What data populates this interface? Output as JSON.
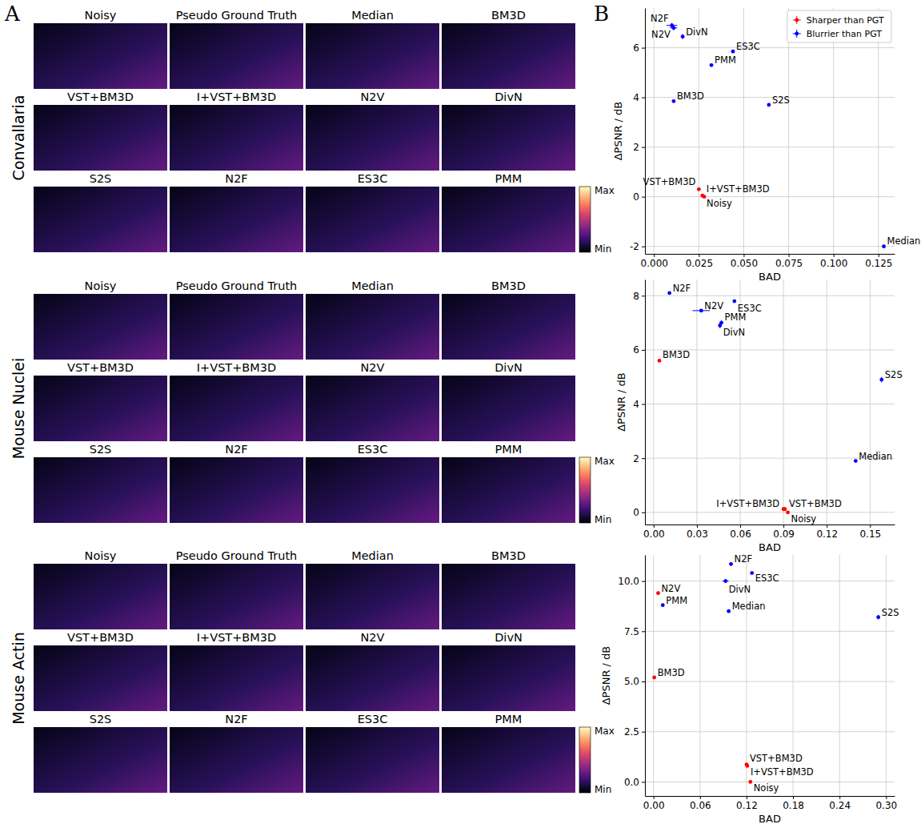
{
  "panel_labels": [
    "A",
    "B"
  ],
  "image_panel": {
    "groups": [
      {
        "name": "Convallaria",
        "titles": [
          [
            "Noisy",
            "Pseudo Ground Truth",
            "Median",
            "BM3D"
          ],
          [
            "VST+BM3D",
            "I+VST+BM3D",
            "N2V",
            "DivN"
          ],
          [
            "S2S",
            "N2F",
            "ES3C",
            "PMM"
          ]
        ]
      },
      {
        "name": "Mouse Nuclei",
        "titles": [
          [
            "Noisy",
            "Pseudo Ground Truth",
            "Median",
            "BM3D"
          ],
          [
            "VST+BM3D",
            "I+VST+BM3D",
            "N2V",
            "DivN"
          ],
          [
            "S2S",
            "N2F",
            "ES3C",
            "PMM"
          ]
        ]
      },
      {
        "name": "Mouse Actin",
        "titles": [
          [
            "Noisy",
            "Pseudo Ground Truth",
            "Median",
            "BM3D"
          ],
          [
            "VST+BM3D",
            "I+VST+BM3D",
            "N2V",
            "DivN"
          ],
          [
            "S2S",
            "N2F",
            "ES3C",
            "PMM"
          ]
        ]
      }
    ],
    "colorbar": {
      "max_label": "Max",
      "min_label": "Min"
    }
  },
  "chart_data": [
    {
      "type": "scatter",
      "x_label": "BAD",
      "y_label": "ΔPSNR / dB",
      "grid": true,
      "legend": "upper right",
      "xlim": [
        -0.005,
        0.134
      ],
      "ylim": [
        -2.3,
        7.6
      ],
      "xticks": [
        {
          "value": 0,
          "label": "0.000"
        },
        {
          "value": 0.025,
          "label": "0.025"
        },
        {
          "value": 0.05,
          "label": "0.050"
        },
        {
          "value": 0.075,
          "label": "0.075"
        },
        {
          "value": 0.1,
          "label": "0.100"
        },
        {
          "value": 0.125,
          "label": "0.125"
        }
      ],
      "yticks": [
        -2,
        0,
        2,
        4,
        6
      ],
      "series": [
        {
          "name": "Sharper than PGT",
          "color": "red",
          "labels": [
            "VST+BM3D",
            "I+VST+BM3D",
            "Noisy"
          ],
          "x": [
            0.025,
            0.027,
            0.028
          ],
          "values": [
            0.3,
            0.05,
            0.0
          ],
          "x_error": [
            0.0005,
            0.0005,
            0.0005
          ],
          "y_error": [
            0.05,
            0.05,
            0.05
          ]
        },
        {
          "name": "Blurrier than PGT",
          "color": "blue",
          "labels": [
            "N2F",
            "N2V",
            "DivN",
            "ES3C",
            "PMM",
            "BM3D",
            "S2S",
            "Median"
          ],
          "x": [
            0.01,
            0.011,
            0.016,
            0.044,
            0.032,
            0.011,
            0.064,
            0.128
          ],
          "values": [
            6.9,
            6.8,
            6.45,
            5.85,
            5.3,
            3.85,
            3.7,
            -2.0
          ],
          "x_error": [
            0.003,
            0.002,
            0.001,
            0.0005,
            0.0005,
            0.0005,
            0.0005,
            0.0005
          ],
          "y_error": [
            0.1,
            0.1,
            0.1,
            0.05,
            0.05,
            0.05,
            0.05,
            0.05
          ]
        }
      ]
    },
    {
      "type": "scatter",
      "x_label": "BAD",
      "y_label": "ΔPSNR / dB",
      "grid": true,
      "xlim": [
        -0.006,
        0.167
      ],
      "ylim": [
        -0.45,
        8.6
      ],
      "xticks": [
        {
          "value": 0,
          "label": "0.00"
        },
        {
          "value": 0.03,
          "label": "0.03"
        },
        {
          "value": 0.06,
          "label": "0.06"
        },
        {
          "value": 0.09,
          "label": "0.09"
        },
        {
          "value": 0.12,
          "label": "0.12"
        },
        {
          "value": 0.15,
          "label": "0.15"
        }
      ],
      "yticks": [
        0,
        2,
        4,
        6,
        8
      ],
      "series": [
        {
          "color": "red",
          "labels": [
            "BM3D",
            "I+VST+BM3D",
            "VST+BM3D",
            "Noisy"
          ],
          "x": [
            0.004,
            0.09,
            0.091,
            0.093
          ],
          "values": [
            5.6,
            0.12,
            0.12,
            0.0
          ],
          "x_error": [
            0.0005,
            0.0005,
            0.0005,
            0.0005
          ],
          "y_error": [
            0.05,
            0.05,
            0.05,
            0.05
          ]
        },
        {
          "color": "blue",
          "labels": [
            "N2F",
            "N2V",
            "ES3C",
            "PMM",
            "DivN",
            "S2S",
            "Median"
          ],
          "x": [
            0.011,
            0.033,
            0.056,
            0.047,
            0.046,
            0.158,
            0.14
          ],
          "values": [
            8.1,
            7.45,
            7.8,
            7.0,
            6.9,
            4.9,
            1.9
          ],
          "x_error": [
            0.001,
            0.006,
            0.0005,
            0.001,
            0.001,
            0.001,
            0.0005
          ],
          "y_error": [
            0.05,
            0.05,
            0.05,
            0.1,
            0.1,
            0.1,
            0.05
          ]
        }
      ]
    },
    {
      "type": "scatter",
      "x_label": "BAD",
      "y_label": "ΔPSNR / dB",
      "grid": true,
      "xlim": [
        -0.011,
        0.311
      ],
      "ylim": [
        -0.7,
        11.3
      ],
      "xticks": [
        {
          "value": 0,
          "label": "0.00"
        },
        {
          "value": 0.06,
          "label": "0.06"
        },
        {
          "value": 0.12,
          "label": "0.12"
        },
        {
          "value": 0.18,
          "label": "0.18"
        },
        {
          "value": 0.24,
          "label": "0.24"
        },
        {
          "value": 0.3,
          "label": "0.30"
        }
      ],
      "yticks": [
        {
          "value": 0,
          "label": "0.0"
        },
        2.5,
        {
          "value": 5,
          "label": "5.0"
        },
        7.5,
        {
          "value": 10,
          "label": "10.0"
        }
      ],
      "series": [
        {
          "color": "red",
          "labels": [
            "N2V",
            "BM3D",
            "VST+BM3D",
            "I+VST+BM3D",
            "Noisy"
          ],
          "x": [
            0.006,
            0.001,
            0.12,
            0.121,
            0.125
          ],
          "values": [
            9.4,
            5.2,
            0.87,
            0.8,
            0.0
          ],
          "x_error": [
            0.001,
            0.0005,
            0.0005,
            0.0005,
            0.0005
          ],
          "y_error": [
            0.05,
            0.05,
            0.05,
            0.05,
            0.05
          ]
        },
        {
          "color": "blue",
          "labels": [
            "N2F",
            "ES3C",
            "DivN",
            "Median",
            "PMM",
            "S2S"
          ],
          "x": [
            0.1,
            0.127,
            0.093,
            0.097,
            0.012,
            0.29
          ],
          "values": [
            10.85,
            10.4,
            10.0,
            8.5,
            8.8,
            8.2
          ],
          "x_error": [
            0.002,
            0.001,
            0.004,
            0.001,
            0.001,
            0.002
          ],
          "y_error": [
            0.1,
            0.05,
            0.1,
            0.05,
            0.05,
            0.1
          ]
        }
      ]
    }
  ]
}
